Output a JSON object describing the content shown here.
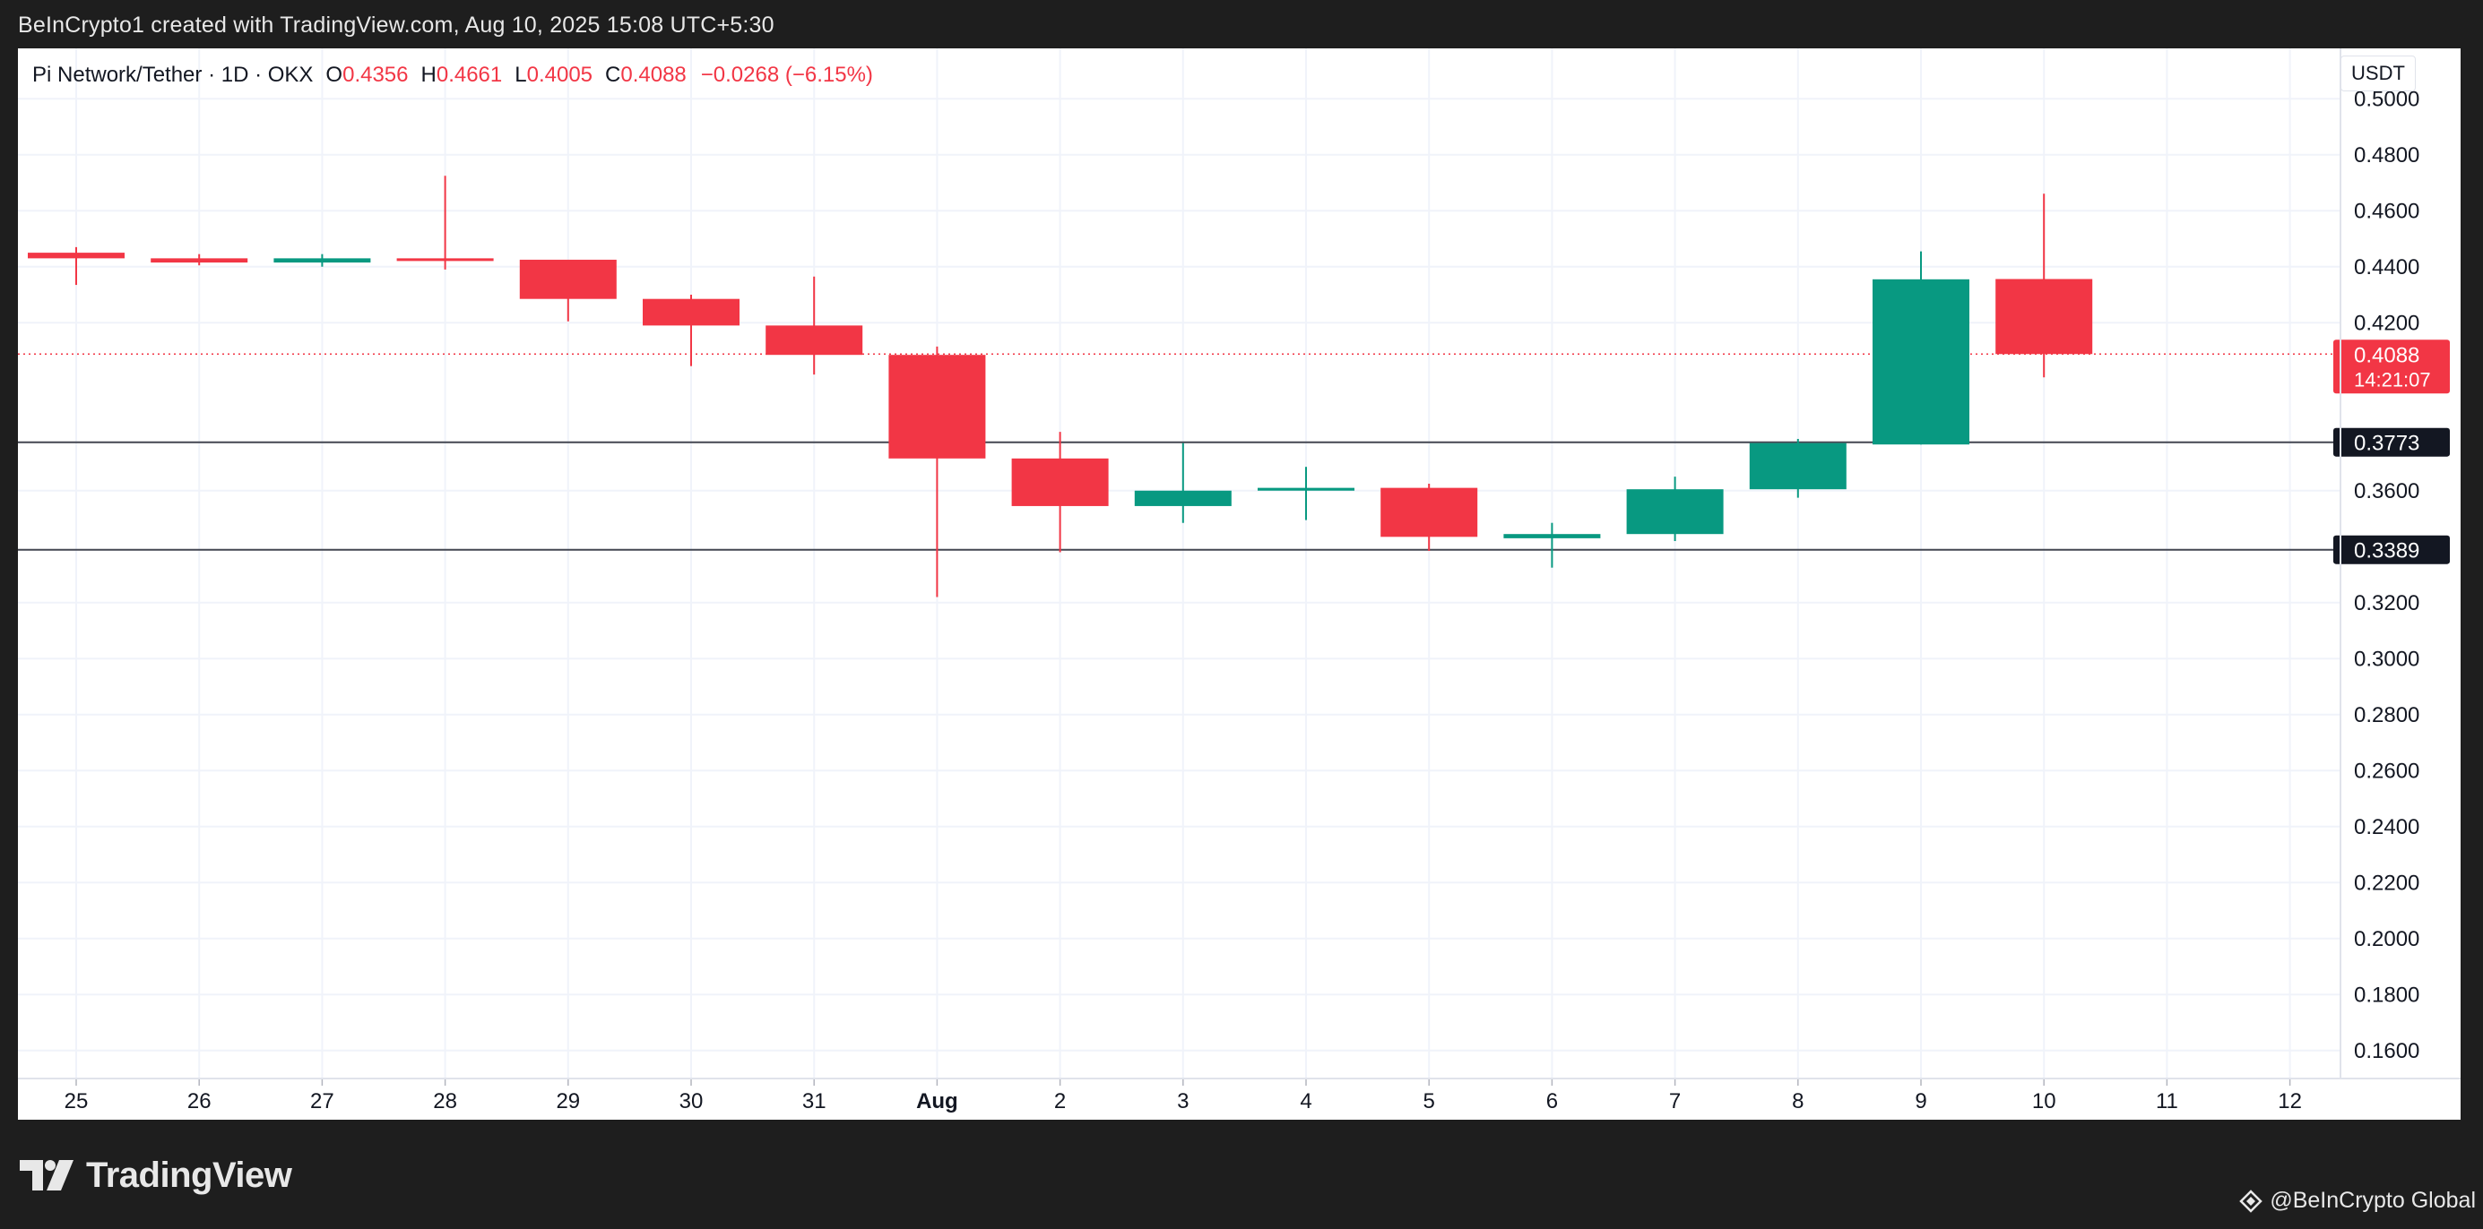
{
  "header": {
    "attribution": "BeInCrypto1 created with TradingView.com, Aug 10, 2025 15:08 UTC+5:30"
  },
  "legend": {
    "title": "Pi Network/Tether · 1D · OKX",
    "open_label": "O",
    "open": "0.4356",
    "high_label": "H",
    "high": "0.4661",
    "low_label": "L",
    "low": "0.4005",
    "close_label": "C",
    "close": "0.4088",
    "change": "−0.0268 (−6.15%)"
  },
  "currency_button": "USDT",
  "footer": {
    "brand": "TradingView",
    "credit": "@BeInCrypto Global"
  },
  "colors": {
    "up": "#089981",
    "down": "#f23645",
    "grid": "#f0f3fa",
    "level_line": "#434651",
    "level_label_bg": "#131722"
  },
  "chart_data": {
    "type": "candlestick",
    "x_tick_labels": [
      "25",
      "26",
      "27",
      "28",
      "29",
      "30",
      "31",
      "Aug",
      "2",
      "3",
      "4",
      "5",
      "6",
      "7",
      "8",
      "9",
      "10",
      "11",
      "12"
    ],
    "ylim": [
      0.15,
      0.518
    ],
    "y_ticks": [
      "0.5000",
      "0.4800",
      "0.4600",
      "0.4400",
      "0.4200",
      "0.3600",
      "0.3200",
      "0.3000",
      "0.2800",
      "0.2600",
      "0.2400",
      "0.2200",
      "0.2000",
      "0.1800",
      "0.1600"
    ],
    "grid": true,
    "candles": [
      {
        "x": "25",
        "open": 0.445,
        "high": 0.447,
        "low": 0.4335,
        "close": 0.443
      },
      {
        "x": "26",
        "open": 0.443,
        "high": 0.4445,
        "low": 0.4405,
        "close": 0.4415
      },
      {
        "x": "27",
        "open": 0.4415,
        "high": 0.4445,
        "low": 0.44,
        "close": 0.443
      },
      {
        "x": "28",
        "open": 0.443,
        "high": 0.4725,
        "low": 0.439,
        "close": 0.4425
      },
      {
        "x": "29",
        "open": 0.4425,
        "high": 0.4425,
        "low": 0.4205,
        "close": 0.4285
      },
      {
        "x": "30",
        "open": 0.4285,
        "high": 0.43,
        "low": 0.4045,
        "close": 0.419
      },
      {
        "x": "31",
        "open": 0.419,
        "high": 0.4365,
        "low": 0.4015,
        "close": 0.4085
      },
      {
        "x": "Aug",
        "open": 0.4085,
        "high": 0.4115,
        "low": 0.322,
        "close": 0.3715
      },
      {
        "x": "2",
        "open": 0.3715,
        "high": 0.381,
        "low": 0.338,
        "close": 0.3545
      },
      {
        "x": "3",
        "open": 0.3545,
        "high": 0.377,
        "low": 0.3485,
        "close": 0.36
      },
      {
        "x": "4",
        "open": 0.36,
        "high": 0.3685,
        "low": 0.3495,
        "close": 0.361
      },
      {
        "x": "5",
        "open": 0.361,
        "high": 0.3625,
        "low": 0.3385,
        "close": 0.3435
      },
      {
        "x": "6",
        "open": 0.343,
        "high": 0.3485,
        "low": 0.3325,
        "close": 0.3445
      },
      {
        "x": "7",
        "open": 0.3445,
        "high": 0.365,
        "low": 0.342,
        "close": 0.3605
      },
      {
        "x": "8",
        "open": 0.3605,
        "high": 0.3785,
        "low": 0.3575,
        "close": 0.377
      },
      {
        "x": "9",
        "open": 0.3765,
        "high": 0.4455,
        "low": 0.3765,
        "close": 0.4355
      },
      {
        "x": "10",
        "open": 0.4356,
        "high": 0.4661,
        "low": 0.4005,
        "close": 0.4088
      }
    ],
    "current_price": {
      "value": 0.4088,
      "label": "0.4088",
      "countdown": "14:21:07"
    },
    "levels": [
      {
        "value": 0.3773,
        "label": "0.3773"
      },
      {
        "value": 0.3389,
        "label": "0.3389"
      }
    ]
  }
}
